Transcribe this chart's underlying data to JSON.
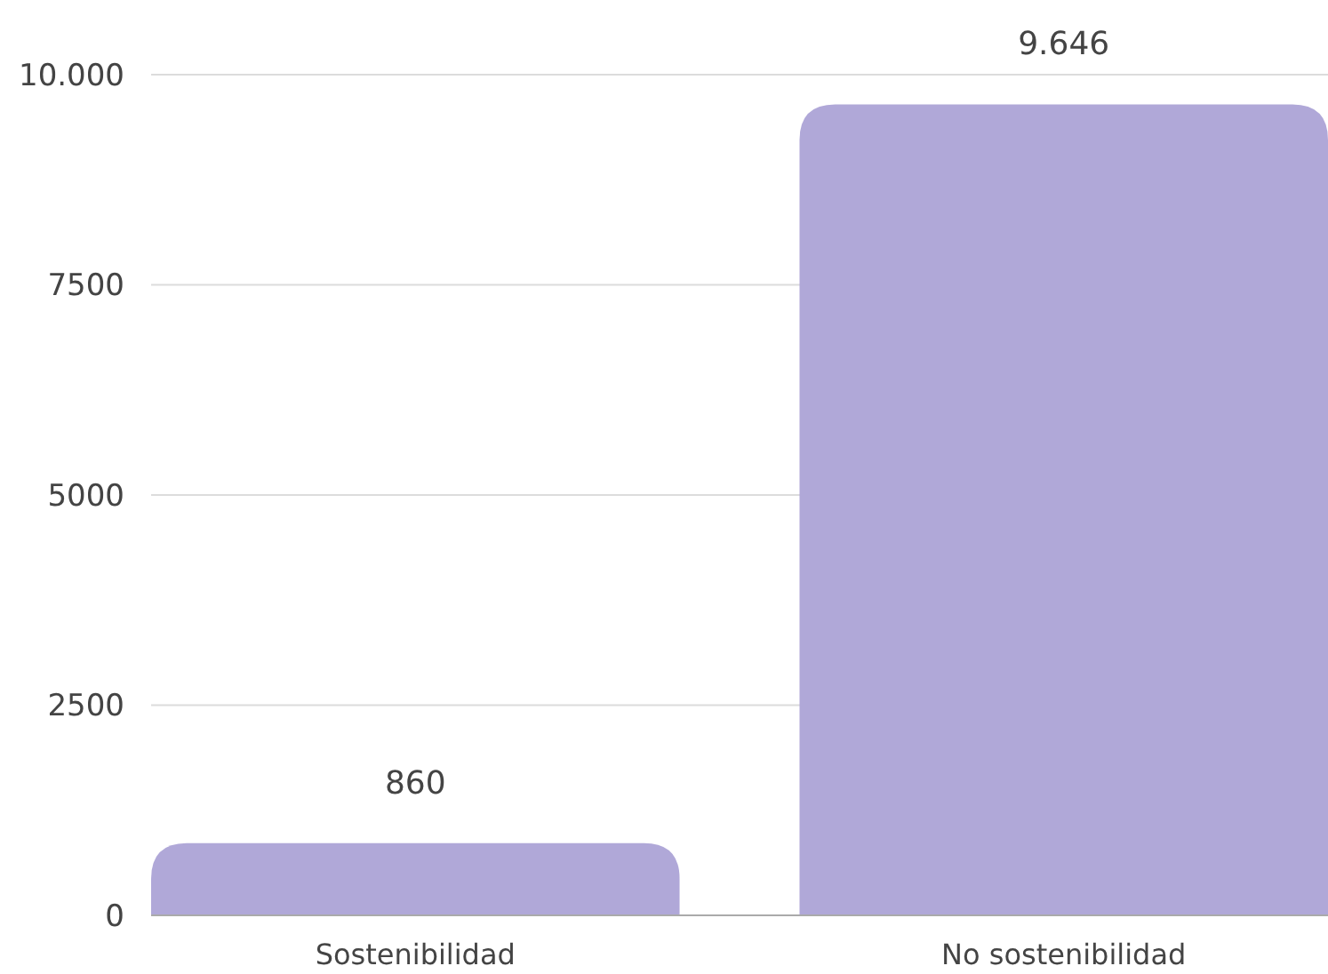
{
  "chart_data": {
    "type": "bar",
    "categories": [
      "Sostenibilidad",
      "No sostenibilidad"
    ],
    "values": [
      860,
      9646
    ],
    "color": "#b0a8d8",
    "value_labels": [
      "860",
      "9.646"
    ],
    "ylim": [
      0,
      10000
    ],
    "yticks": [
      0,
      2500,
      5000,
      7500,
      {
        "value": 10000,
        "label": "10.000"
      }
    ],
    "grid": "y"
  }
}
